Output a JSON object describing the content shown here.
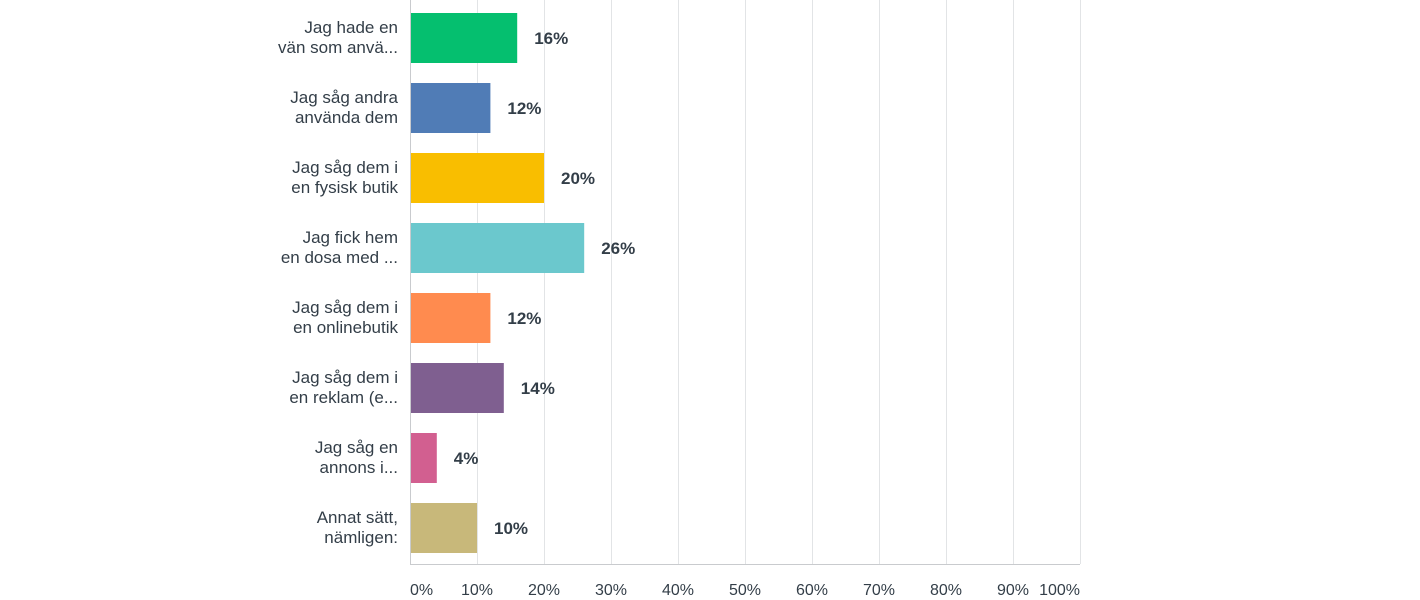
{
  "chart_data": {
    "type": "bar",
    "orientation": "horizontal",
    "title": "",
    "xlabel": "",
    "ylabel": "",
    "categories": [
      [
        "Jag hade en",
        "vän som anvä..."
      ],
      [
        "Jag såg andra",
        "använda dem"
      ],
      [
        "Jag såg dem i",
        "en fysisk butik"
      ],
      [
        "Jag fick hem",
        "en dosa med ..."
      ],
      [
        "Jag såg dem i",
        "en onlinebutik"
      ],
      [
        "Jag såg dem i",
        "en reklam (e..."
      ],
      [
        "Jag såg en",
        "annons i..."
      ],
      [
        "Annat sätt,",
        "nämligen:"
      ]
    ],
    "values": [
      16,
      12,
      20,
      26,
      12,
      14,
      4,
      10
    ],
    "value_labels": [
      "16%",
      "12%",
      "20%",
      "26%",
      "12%",
      "14%",
      "4%",
      "10%"
    ],
    "colors": [
      "#05bf6f",
      "#507cb6",
      "#f9be00",
      "#6bc8cd",
      "#ff8b4f",
      "#7f5f90",
      "#d25f90",
      "#c8b87a"
    ],
    "xlim": [
      0,
      100
    ],
    "x_ticks": [
      0,
      10,
      20,
      30,
      40,
      50,
      60,
      70,
      80,
      90,
      100
    ],
    "x_tick_labels": [
      "0%",
      "10%",
      "20%",
      "30%",
      "40%",
      "50%",
      "60%",
      "70%",
      "80%",
      "90%",
      "100%"
    ],
    "grid": true,
    "legend": "none"
  }
}
